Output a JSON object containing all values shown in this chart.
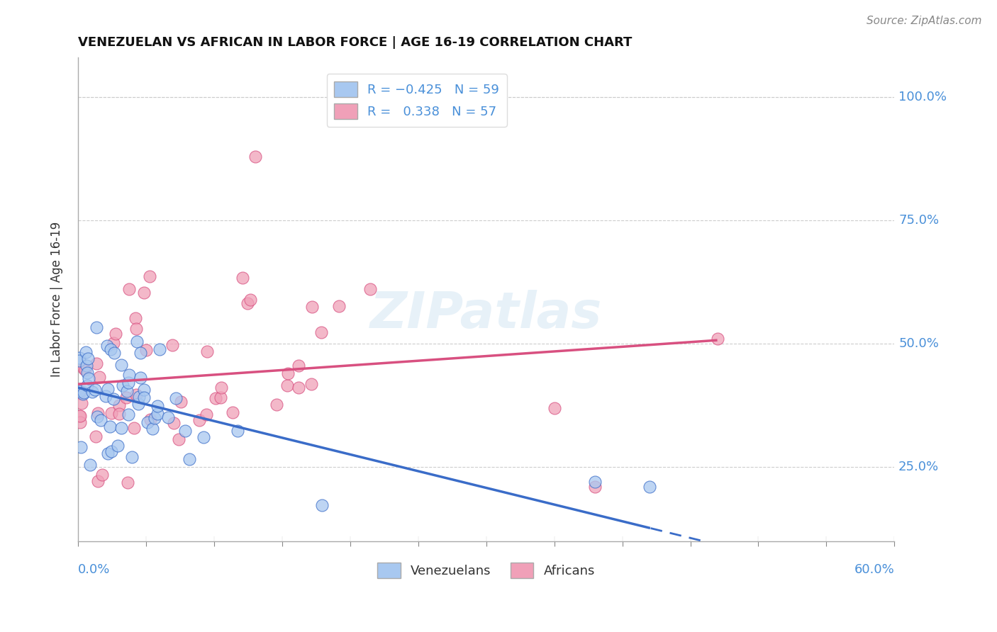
{
  "title": "VENEZUELAN VS AFRICAN IN LABOR FORCE | AGE 16-19 CORRELATION CHART",
  "source": "Source: ZipAtlas.com",
  "ylabel": "In Labor Force | Age 16-19",
  "y_ticks": [
    "25.0%",
    "50.0%",
    "75.0%",
    "100.0%"
  ],
  "y_tick_vals": [
    0.25,
    0.5,
    0.75,
    1.0
  ],
  "legend_label1": "Venezuelans",
  "legend_label2": "Africans",
  "color_blue": "#A8C8F0",
  "color_pink": "#F0A0B8",
  "color_blue_line": "#3A6CC8",
  "color_pink_line": "#D85080",
  "watermark": "ZIPatlas",
  "xlim": [
    0.0,
    0.6
  ],
  "ylim": [
    0.1,
    1.08
  ],
  "R_ven": -0.425,
  "N_ven": 59,
  "R_afr": 0.338,
  "N_afr": 57
}
